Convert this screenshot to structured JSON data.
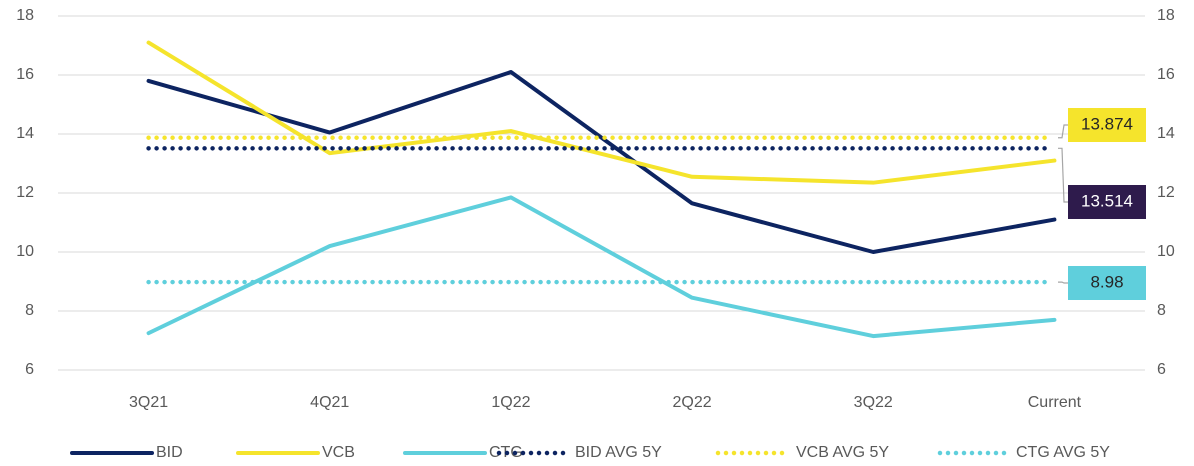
{
  "chart_data": {
    "type": "line",
    "categories": [
      "3Q21",
      "4Q21",
      "1Q22",
      "2Q22",
      "3Q22",
      "Current"
    ],
    "series": [
      {
        "name": "BID",
        "color": "#0d2461",
        "style": "solid",
        "values": [
          15.8,
          14.05,
          16.1,
          11.65,
          10.0,
          11.1
        ]
      },
      {
        "name": "VCB",
        "color": "#f5e42c",
        "style": "solid",
        "values": [
          17.1,
          13.35,
          14.1,
          12.55,
          12.35,
          13.1
        ]
      },
      {
        "name": "CTG",
        "color": "#5fcfdc",
        "style": "solid",
        "values": [
          7.25,
          10.2,
          11.85,
          8.45,
          7.15,
          7.7
        ]
      },
      {
        "name": "BID AVG 5Y",
        "color": "#0d2461",
        "style": "dotted",
        "values": [
          13.514,
          13.514,
          13.514,
          13.514,
          13.514,
          13.514
        ]
      },
      {
        "name": "VCB AVG 5Y",
        "color": "#f5e42c",
        "style": "dotted",
        "values": [
          13.874,
          13.874,
          13.874,
          13.874,
          13.874,
          13.874
        ]
      },
      {
        "name": "CTG AVG 5Y",
        "color": "#5fcfdc",
        "style": "dotted",
        "values": [
          8.98,
          8.98,
          8.98,
          8.98,
          8.98,
          8.98
        ]
      }
    ],
    "ylim": [
      6,
      18
    ],
    "yticks": [
      6,
      8,
      10,
      12,
      14,
      16,
      18
    ],
    "y2lim": [
      6,
      18
    ],
    "y2ticks": [
      6,
      8,
      10,
      12,
      14,
      16,
      18
    ],
    "grid": true,
    "legend": "bottom"
  }
}
